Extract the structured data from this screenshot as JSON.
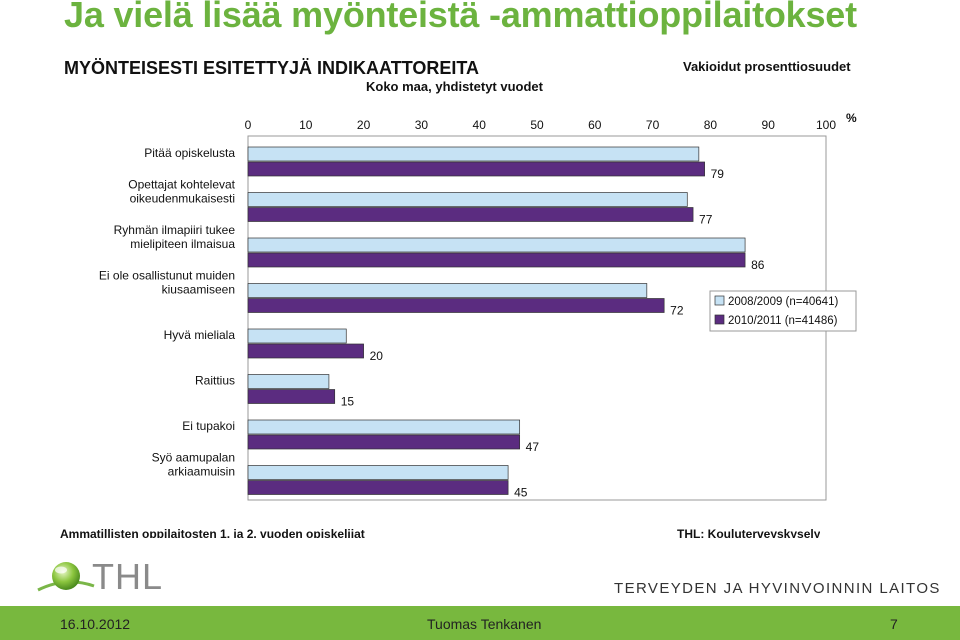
{
  "slide": {
    "title": "Ja vielä lisää myönteistä -ammattioppilaitokset",
    "footer_date": "16.10.2012",
    "footer_author": "Tuomas Tenkanen",
    "footer_page": "7",
    "logo_text": "THL",
    "org_name": "TERVEYDEN JA HYVINVOINNIN LAITOS"
  },
  "chart_data": {
    "type": "bar",
    "orientation": "horizontal",
    "title": "MYÖNTEISESTI ESITETTYJÄ INDIKAATTOREITA",
    "subtitle": "Koko maa, yhdistetyt vuodet",
    "note": "Vakioidut prosenttiosuudet",
    "unit_label": "%",
    "xlim": [
      0,
      100
    ],
    "xticks": [
      "0",
      "10",
      "20",
      "30",
      "40",
      "50",
      "60",
      "70",
      "80",
      "90",
      "100"
    ],
    "categories": [
      [
        "Pitää opiskelusta"
      ],
      [
        "Opettajat kohtelevat",
        "oikeudenmukaisesti"
      ],
      [
        "Ryhmän ilmapiiri tukee",
        "mielipiteen ilmaisua"
      ],
      [
        "Ei ole osallistunut muiden",
        "kiusaamiseen"
      ],
      [
        "Hyvä mieliala"
      ],
      [
        "Raittius"
      ],
      [
        "Ei tupakoi"
      ],
      [
        "Syö aamupalan",
        "arkiaamuisin"
      ]
    ],
    "series": [
      {
        "name": "2008/2009 (n=40641)",
        "values": [
          78,
          76,
          86,
          69,
          17,
          14,
          47,
          45
        ],
        "color": "#c6e2f4"
      },
      {
        "name": "2010/2011 (n=41486)",
        "values": [
          79,
          77,
          86,
          72,
          20,
          15,
          47,
          45
        ],
        "color": "#5b2c80"
      }
    ],
    "data_labels": [
      "79",
      "77",
      "86",
      "72",
      "20",
      "15",
      "47",
      "45"
    ],
    "legend_position": "right",
    "grid": false,
    "source_left": "Ammatillisten oppilaitosten 1. ja 2. vuoden opiskelijat",
    "source_right": "THL: Kouluterveyskysely"
  }
}
